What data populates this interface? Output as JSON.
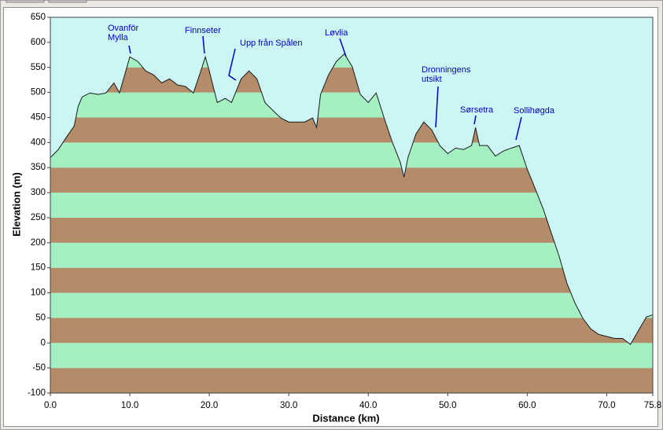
{
  "chart_data": {
    "type": "area",
    "x_label": "Distance   (km)",
    "y_label": "Elevation  (m)",
    "x": [
      0,
      1,
      2,
      3,
      3.5,
      4,
      5,
      6,
      7,
      8,
      8.7,
      9.5,
      10,
      11,
      12,
      13,
      14,
      15,
      16,
      17,
      18,
      19,
      19.5,
      20,
      21,
      22,
      22.8,
      24,
      25,
      26,
      27,
      28,
      29,
      30,
      31,
      32,
      33,
      33.5,
      34,
      35,
      36,
      37,
      38,
      39,
      40,
      41,
      42,
      43,
      44,
      44.5,
      45,
      46,
      47,
      48,
      49,
      50,
      51,
      52,
      53,
      53.5,
      54,
      55,
      56,
      57,
      58,
      59,
      60,
      61,
      62,
      63,
      64,
      65,
      66,
      67,
      68,
      69,
      70,
      71,
      72,
      73,
      74,
      75,
      75.8
    ],
    "values": [
      370,
      386,
      410,
      433,
      472,
      491,
      499,
      496,
      499,
      519,
      499,
      543,
      571,
      562,
      543,
      535,
      519,
      527,
      515,
      512,
      499,
      546,
      571,
      543,
      480,
      488,
      480,
      527,
      543,
      527,
      480,
      464,
      449,
      441,
      441,
      441,
      449,
      430,
      496,
      535,
      562,
      577,
      551,
      496,
      480,
      499,
      449,
      402,
      362,
      331,
      370,
      417,
      441,
      425,
      394,
      378,
      389,
      386,
      394,
      430,
      394,
      394,
      373,
      383,
      389,
      394,
      347,
      308,
      268,
      221,
      174,
      119,
      80,
      49,
      28,
      17,
      13,
      9,
      9,
      -3,
      25,
      52,
      56
    ],
    "line_color": "#1a1a1a",
    "band_colors": [
      "#b48c6a",
      "#a4f0c2"
    ],
    "background": "#ccf5f5",
    "xlim": [
      0,
      75.8
    ],
    "xticks": [
      {
        "value": 0,
        "label": "0.0"
      },
      {
        "value": 10,
        "label": "10.0"
      },
      {
        "value": 20,
        "label": "20.0"
      },
      {
        "value": 30,
        "label": "30.0"
      },
      {
        "value": 40,
        "label": "40.0"
      },
      {
        "value": 50,
        "label": "50.0"
      },
      {
        "value": 60,
        "label": "60.0"
      },
      {
        "value": 70,
        "label": "70.0"
      },
      75.8
    ],
    "ylim": [
      -100,
      650
    ],
    "yticks": [
      -100,
      -50,
      0,
      50,
      100,
      150,
      200,
      250,
      300,
      350,
      400,
      450,
      500,
      550,
      600,
      650
    ],
    "annotations": [
      [
        "Ovanför",
        "Mylla"
      ],
      [
        "Finnseter"
      ],
      [
        "Upp från Spålen"
      ],
      [
        "Løvlia"
      ],
      [
        "Dronningens",
        "utsikt"
      ],
      [
        "Sørsetra"
      ],
      [
        "Sollihøgda"
      ]
    ]
  }
}
